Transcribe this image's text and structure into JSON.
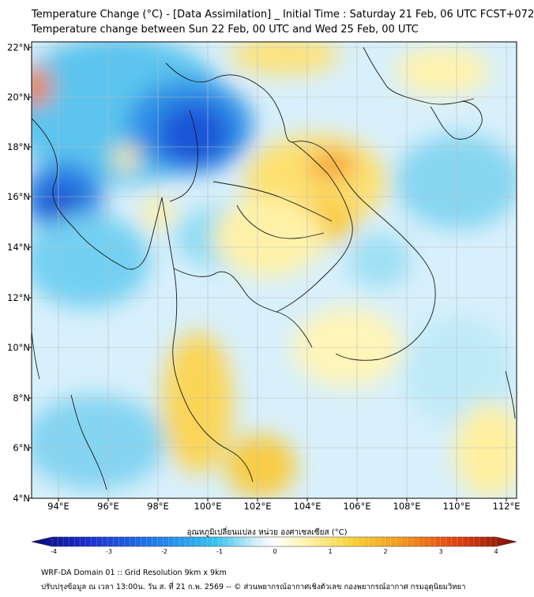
{
  "title_line1": "Temperature Change (°C) - [Data Assimilation] _ Initial Time : Saturday 21 Feb, 06 UTC FCST+072",
  "title_line2": "Temperature change between Sun 22 Feb, 00 UTC and Wed 25 Feb, 00 UTC",
  "lat_labels": [
    "22°N",
    "20°N",
    "18°N",
    "16°N",
    "14°N",
    "12°N",
    "10°N",
    "8°N",
    "6°N",
    "4°N"
  ],
  "lon_labels": [
    "94°E",
    "96°E",
    "98°E",
    "100°E",
    "102°E",
    "104°E",
    "106°E",
    "108°E",
    "110°E",
    "112°E"
  ],
  "colorbar": {
    "label": "อุณหภูมิเปลี่ยนแปลง หน่วย องศาเซลเซียส (°C)",
    "ticks": [
      "-4",
      "-3",
      "-2",
      "-1",
      "0",
      "1",
      "2",
      "3",
      "4"
    ],
    "colors": [
      "#0a0a78",
      "#1c2fd0",
      "#1f7ae8",
      "#37c2ee",
      "#cdeefa",
      "#ffffff",
      "#fff6b0",
      "#f7d23a",
      "#f39a1c",
      "#e0400f",
      "#7a0a08"
    ]
  },
  "footer_line1": "WRF-DA Domain 01 :: Grid Resolution 9km x 9km",
  "footer_line2": "ปรับปรุงข้อมูล ณ เวลา 13:00น. วัน ส. ที่ 21 ก.พ. 2569 -- © ส่วนพยากรณ์อากาศเชิงตัวเลข กองพยากรณ์อากาศ กรมอุตุนิยมวิทยา"
}
